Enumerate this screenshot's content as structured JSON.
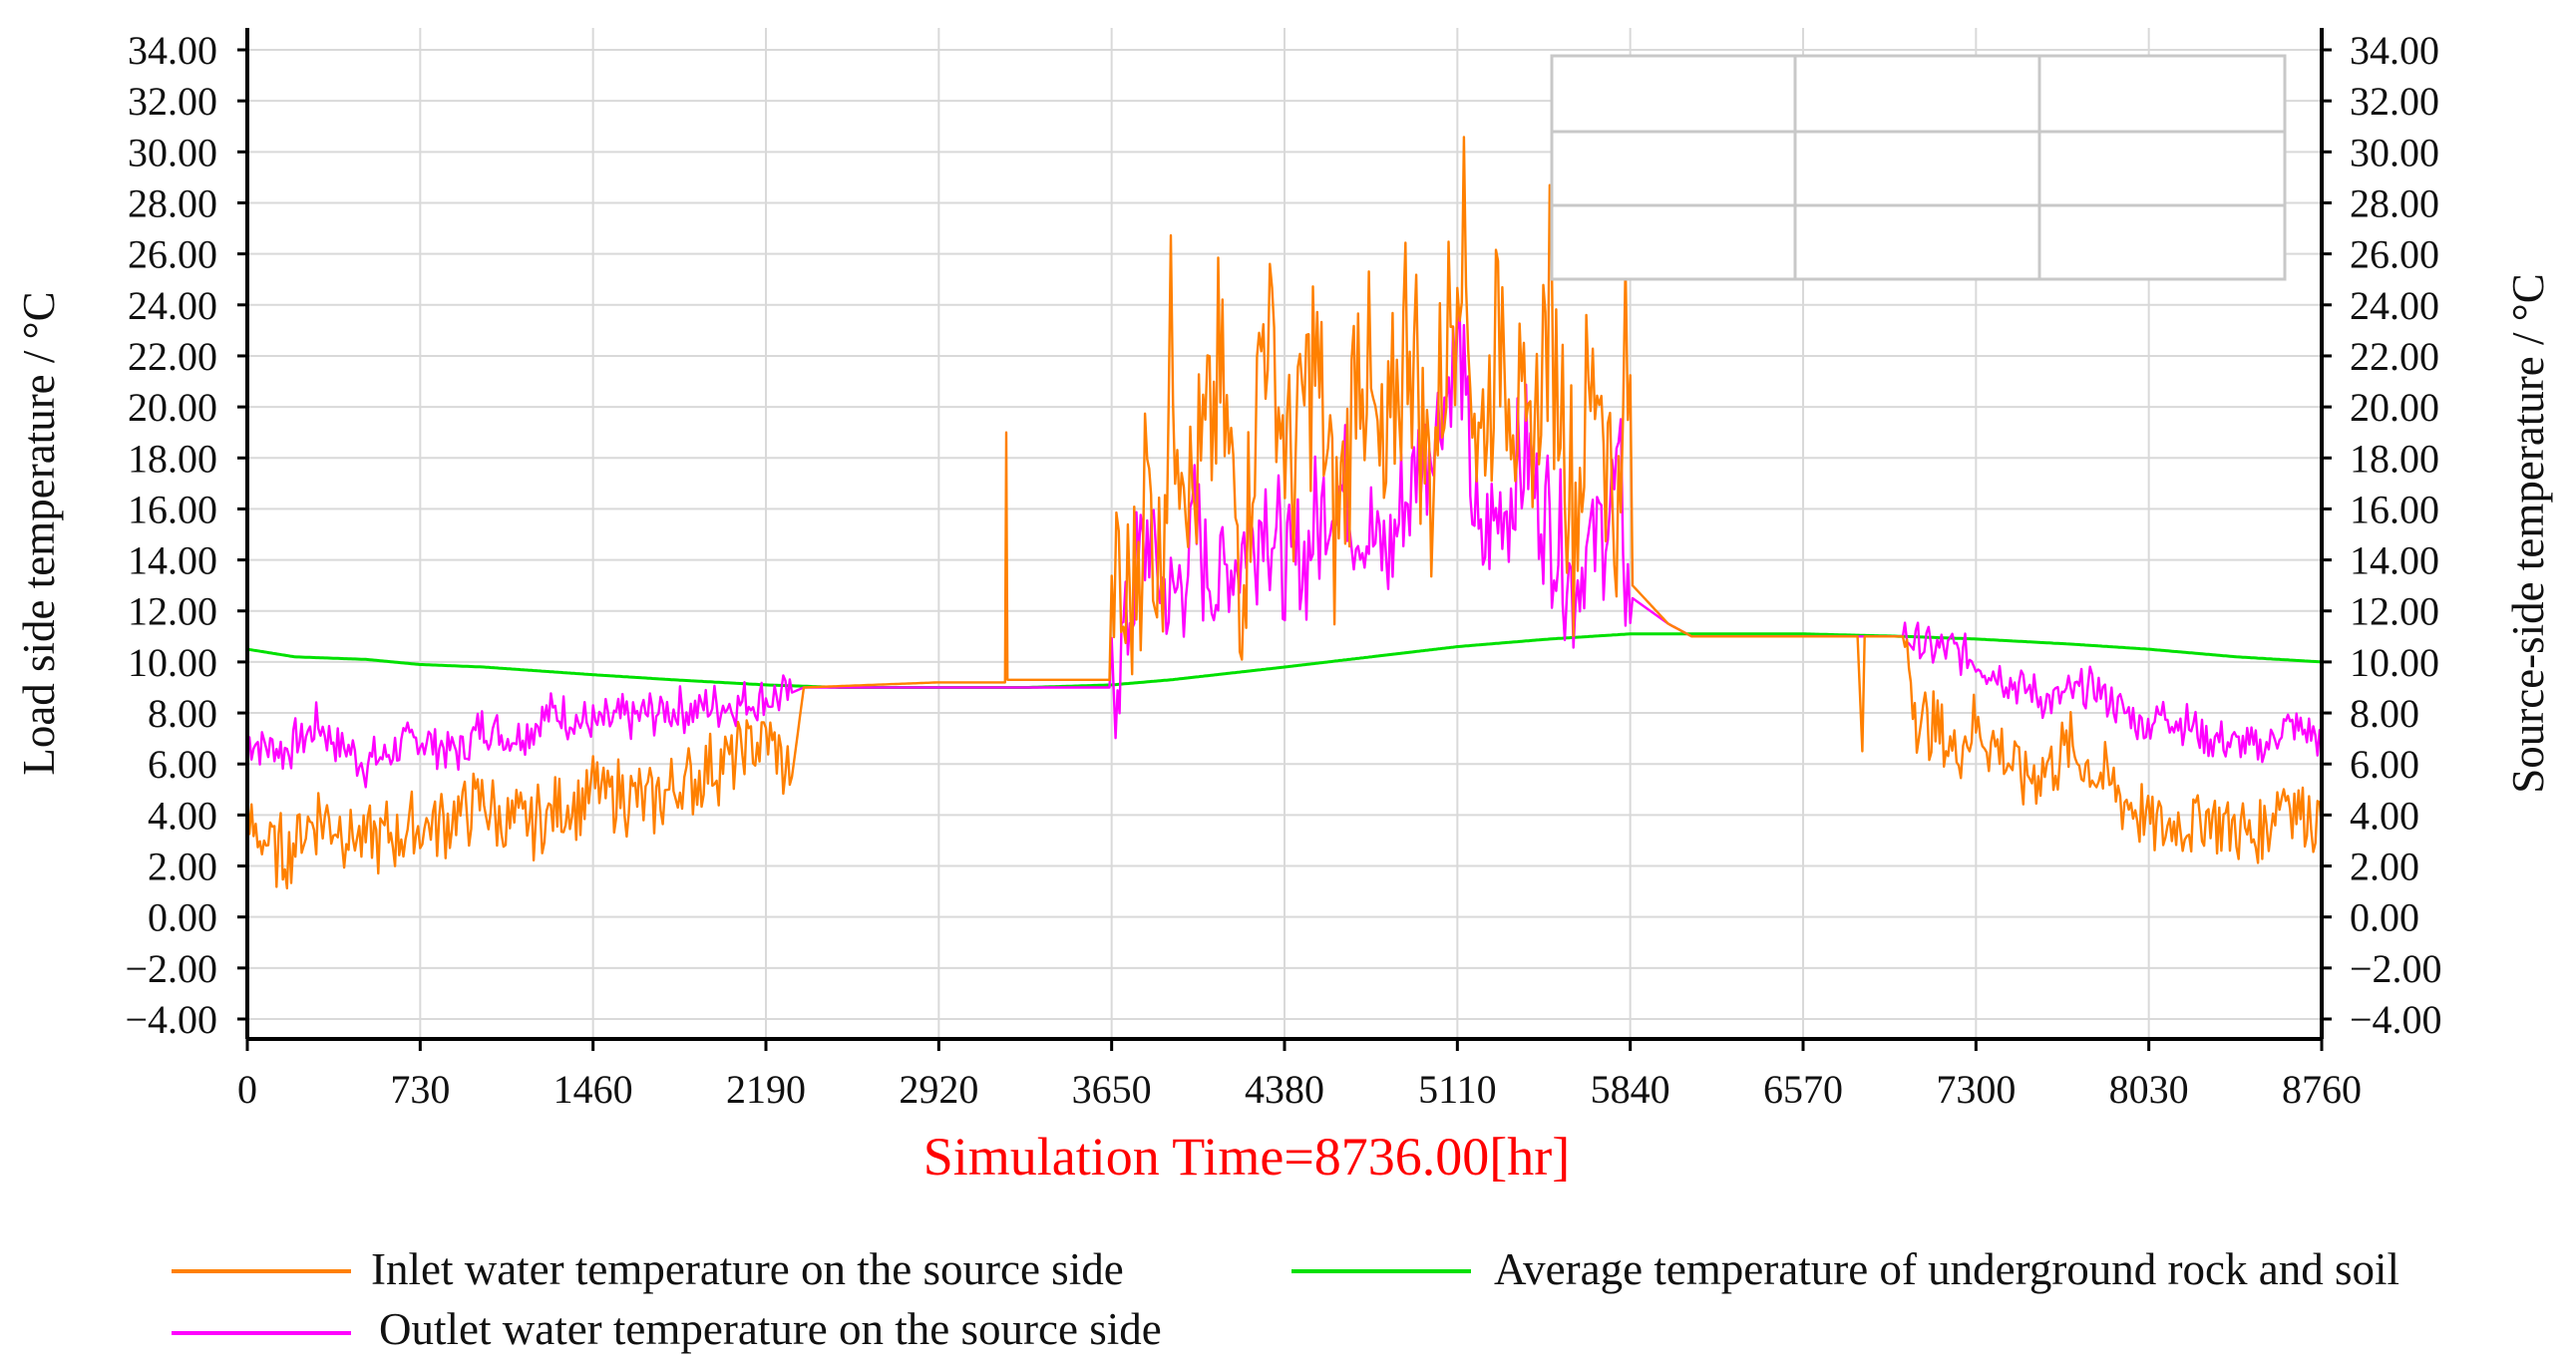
{
  "chart_data": {
    "type": "line",
    "xlabel": "Simulation Time=8736.00[hr]",
    "ylabel_left": "Load side temperature / °C",
    "ylabel_right": "Source-side temperature / °C",
    "xlim": [
      0,
      8760
    ],
    "ylim": [
      -4,
      34
    ],
    "x_ticks": [
      "0",
      "730",
      "1460",
      "2190",
      "2920",
      "3650",
      "4380",
      "5110",
      "5840",
      "6570",
      "7300",
      "8030",
      "8760"
    ],
    "y_ticks": [
      "-4.00",
      "-2.00",
      "0.00",
      "2.00",
      "4.00",
      "6.00",
      "8.00",
      "10.00",
      "12.00",
      "14.00",
      "16.00",
      "18.00",
      "20.00",
      "22.00",
      "24.00",
      "26.00",
      "28.00",
      "30.00",
      "32.00",
      "34.00"
    ],
    "grid": true,
    "legend_position": "bottom",
    "series": [
      {
        "name": "Inlet water temperature on the source side",
        "color": "#ff8000",
        "x": [
          0,
          150,
          300,
          500,
          730,
          900,
          1000,
          1100,
          1300,
          1460,
          1700,
          1900,
          2000,
          2190,
          2300,
          2350,
          2920,
          3200,
          3205,
          3210,
          3650,
          3660,
          3700,
          3800,
          3850,
          3900,
          4000,
          4100,
          4200,
          4300,
          4400,
          4500,
          4600,
          4700,
          4800,
          4900,
          5000,
          5100,
          5120,
          5200,
          5300,
          5400,
          5500,
          5600,
          5700,
          5800,
          5820,
          5850,
          6000,
          6100,
          6800,
          6820,
          6830,
          7000,
          7050,
          7200,
          7300,
          7500,
          7700,
          8000,
          8100,
          8300,
          8500,
          8600,
          8760
        ],
        "values": [
          3.5,
          2.5,
          4.0,
          3.0,
          3.5,
          4.0,
          4.5,
          3.5,
          4.0,
          5.0,
          4.5,
          5.5,
          6.0,
          7.0,
          5.5,
          9.0,
          9.2,
          9.2,
          19.0,
          9.3,
          9.3,
          14.0,
          11.0,
          17.0,
          13.0,
          22.0,
          16.0,
          21.0,
          14.0,
          24.0,
          17.0,
          22.0,
          15.0,
          23.0,
          16.0,
          24.0,
          17.0,
          25.0,
          28.0,
          18.0,
          24.0,
          17.0,
          24.0,
          16.0,
          22.0,
          14.0,
          24.0,
          13.0,
          11.5,
          11.0,
          11.0,
          6.5,
          11.0,
          11.0,
          8.0,
          6.5,
          7.5,
          5.5,
          6.5,
          4.0,
          3.5,
          4.0,
          3.0,
          5.0,
          3.5
        ]
      },
      {
        "name": "Outlet water temperature on the source side",
        "color": "#ff00ff",
        "x": [
          0,
          150,
          300,
          500,
          730,
          900,
          1000,
          1100,
          1300,
          1460,
          1700,
          1900,
          2190,
          2300,
          2350,
          2920,
          3650,
          3700,
          3800,
          3900,
          4000,
          4100,
          4300,
          4400,
          4600,
          4800,
          5000,
          5120,
          5200,
          5400,
          5600,
          5800,
          5820,
          5850,
          6000,
          6100,
          7000,
          7100,
          7200,
          7400,
          7600,
          7800,
          8000,
          8100,
          8300,
          8500,
          8600,
          8760
        ],
        "values": [
          7.0,
          6.5,
          7.5,
          6.0,
          7.0,
          6.5,
          7.5,
          7.0,
          8.0,
          7.5,
          8.0,
          8.2,
          8.5,
          8.8,
          9.0,
          9.0,
          9.0,
          11.0,
          15.0,
          12.0,
          15.0,
          13.0,
          16.0,
          13.0,
          17.0,
          14.0,
          19.0,
          22.0,
          14.0,
          18.0,
          13.0,
          17.0,
          13.5,
          12.5,
          11.5,
          11.0,
          11.0,
          10.5,
          10.5,
          9.5,
          8.5,
          9.0,
          7.5,
          8.0,
          7.0,
          6.5,
          7.5,
          7.0
        ]
      },
      {
        "name": "Average temperature of underground rock and soil",
        "color": "#00e000",
        "x": [
          0,
          200,
          500,
          730,
          1000,
          1460,
          1800,
          2190,
          2500,
          2920,
          3300,
          3650,
          3900,
          4380,
          5110,
          5500,
          5840,
          6200,
          6570,
          7000,
          7300,
          7700,
          8030,
          8400,
          8760
        ],
        "values": [
          10.5,
          10.2,
          10.1,
          9.9,
          9.8,
          9.5,
          9.3,
          9.1,
          9.0,
          9.0,
          9.0,
          9.1,
          9.3,
          9.8,
          10.6,
          10.9,
          11.1,
          11.1,
          11.1,
          11.0,
          10.9,
          10.7,
          10.5,
          10.2,
          10.0
        ]
      }
    ]
  }
}
